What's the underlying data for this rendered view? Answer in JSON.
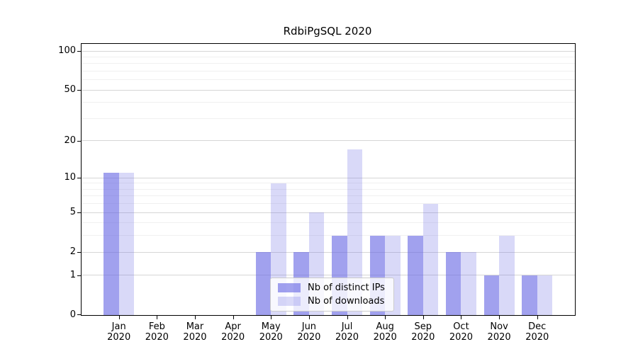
{
  "title": "RdbiPgSQL 2020",
  "chart_data": {
    "type": "bar",
    "title": "RdbiPgSQL 2020",
    "categories": [
      "Jan",
      "Feb",
      "Mar",
      "Apr",
      "May",
      "Jun",
      "Jul",
      "Aug",
      "Sep",
      "Oct",
      "Nov",
      "Dec"
    ],
    "year_label": "2020",
    "series": [
      {
        "name": "Nb of distinct IPs",
        "color": "rgba(103,103,227,0.62)",
        "values": [
          11,
          0,
          0,
          0,
          2,
          2,
          3,
          3,
          3,
          2,
          1,
          1
        ]
      },
      {
        "name": "Nb of downloads",
        "color": "rgba(103,103,227,0.25)",
        "values": [
          11,
          0,
          0,
          0,
          9,
          5,
          17,
          3,
          6,
          2,
          3,
          1
        ]
      }
    ],
    "yscale": "log10(1+x)",
    "ylim": [
      0,
      100
    ],
    "yticks": [
      0,
      1,
      2,
      5,
      10,
      20,
      50,
      100
    ],
    "minor_gridlines": [
      3,
      4,
      6,
      7,
      8,
      9,
      30,
      40,
      60,
      70,
      80,
      90
    ],
    "grid": "on",
    "legend_position": "bottom-center",
    "colors": {
      "bar_base": "#6767e3",
      "major_grid": "#d6d6d6",
      "minor_grid": "#f0f0f0",
      "axis": "#000000",
      "legend_border": "#cccccc"
    }
  }
}
